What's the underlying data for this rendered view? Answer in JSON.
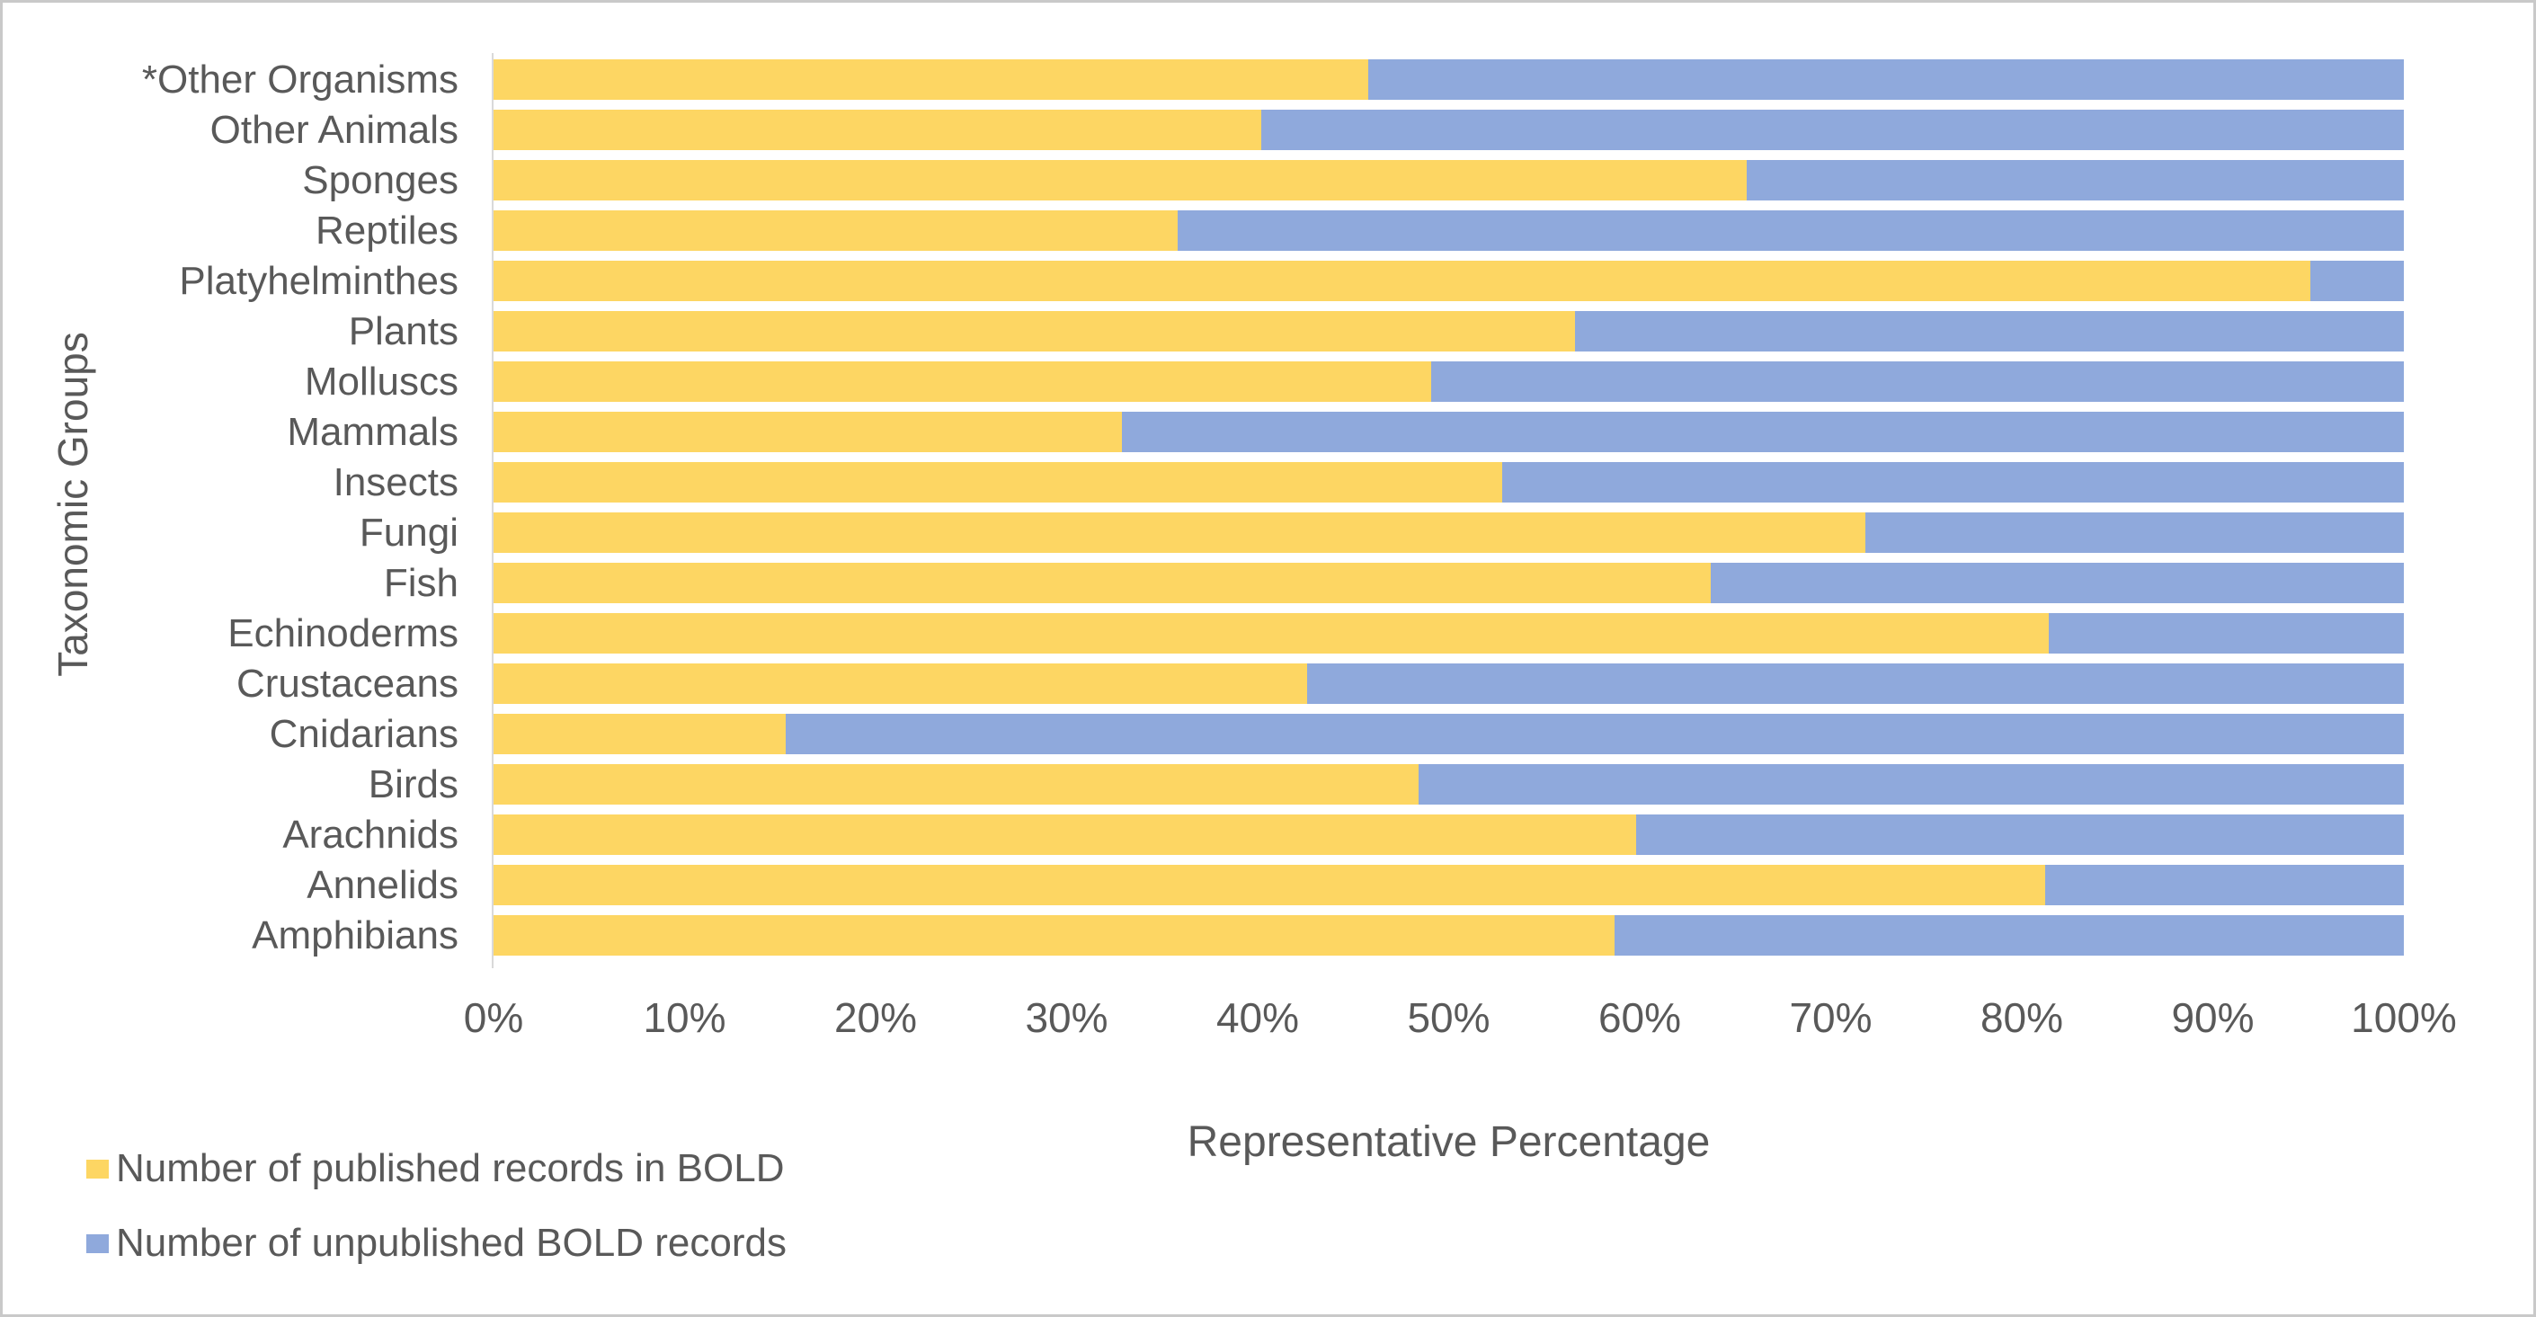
{
  "chart_data": {
    "type": "bar",
    "orientation": "horizontal-stacked",
    "title": "",
    "xlabel": "Representative Percentage",
    "ylabel": "Taxonomic Groups",
    "xlim": [
      0,
      100
    ],
    "x_ticks": [
      "0%",
      "10%",
      "20%",
      "30%",
      "40%",
      "50%",
      "60%",
      "70%",
      "80%",
      "90%",
      "100%"
    ],
    "grid": false,
    "legend_position": "bottom-left",
    "categories": [
      "*Other Organisms",
      "Other Animals",
      "Sponges",
      "Reptiles",
      "Platyhelminthes",
      "Plants",
      "Molluscs",
      "Mammals",
      "Insects",
      "Fungi",
      "Fish",
      "Echinoderms",
      "Crustaceans",
      "Cnidarians",
      "Birds",
      "Arachnids",
      "Annelids",
      "Amphibians"
    ],
    "series": [
      {
        "name": "Number of published records in BOLD",
        "color": "#FDD663",
        "values": [
          45.8,
          40.2,
          65.6,
          35.8,
          95.1,
          56.6,
          49.1,
          32.9,
          52.8,
          71.8,
          63.7,
          81.4,
          42.6,
          15.3,
          48.4,
          59.8,
          81.2,
          58.7
        ]
      },
      {
        "name": "Number of unpublished BOLD records",
        "color": "#8FA9DC",
        "values": [
          54.2,
          59.8,
          34.4,
          64.2,
          4.9,
          43.4,
          50.9,
          67.1,
          47.2,
          28.2,
          36.3,
          18.6,
          57.4,
          84.7,
          51.6,
          40.2,
          18.8,
          41.3
        ]
      }
    ],
    "colors": {
      "text": "#595959",
      "axis_line": "#D9D9D9",
      "frame_border": "#C9C9C9",
      "background": "#FFFFFF"
    }
  }
}
